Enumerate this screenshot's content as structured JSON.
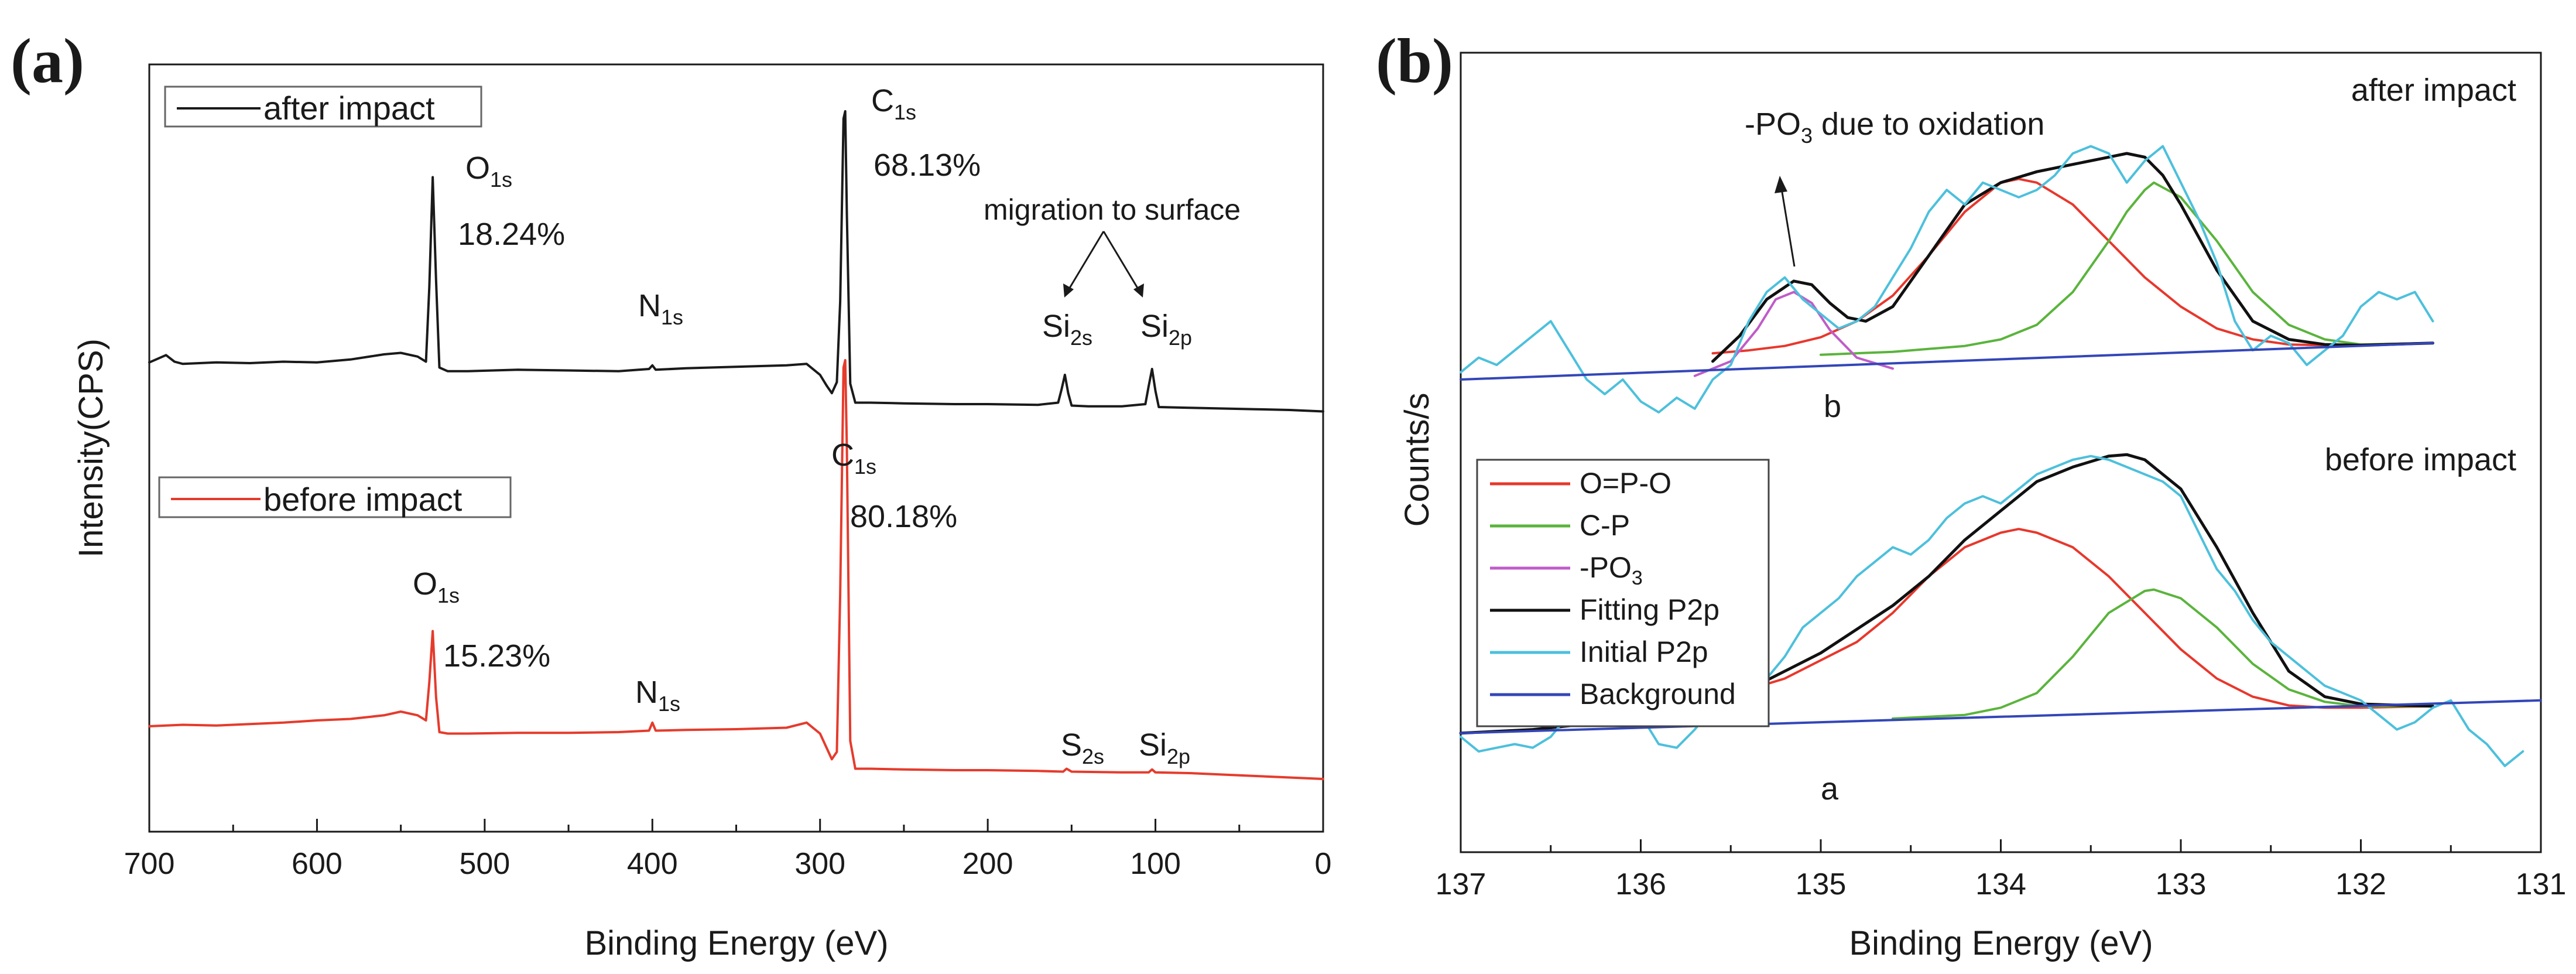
{
  "figure": {
    "panel_a_label": "(a)",
    "panel_b_label": "(b)"
  },
  "chart_data": [
    {
      "type": "line",
      "panel": "(a)",
      "title": "",
      "xlabel": "Binding Energy (eV)",
      "ylabel": "Intensity(CPS)",
      "xlim": [
        700,
        0
      ],
      "x_ticks": [
        700,
        600,
        500,
        400,
        300,
        200,
        100,
        0
      ],
      "ylim": [
        0,
        1
      ],
      "legends": [
        "after impact",
        "before impact"
      ],
      "series": [
        {
          "name": "after impact",
          "color": "#1a1a1a",
          "x": [
            700,
            690,
            685,
            680,
            660,
            640,
            620,
            600,
            580,
            560,
            550,
            540,
            535,
            533,
            531,
            529,
            527,
            522,
            510,
            480,
            450,
            420,
            402,
            400,
            398,
            380,
            350,
            320,
            308,
            300,
            296,
            293,
            290,
            288,
            286,
            285,
            284,
            282,
            279,
            270,
            250,
            220,
            200,
            170,
            158,
            156,
            154,
            152,
            150,
            140,
            120,
            106,
            104,
            102,
            100,
            98,
            80,
            60,
            40,
            20,
            0
          ],
          "y": [
            0.617,
            0.627,
            0.618,
            0.615,
            0.617,
            0.616,
            0.618,
            0.617,
            0.621,
            0.628,
            0.63,
            0.625,
            0.618,
            0.72,
            0.87,
            0.73,
            0.61,
            0.605,
            0.605,
            0.607,
            0.606,
            0.605,
            0.608,
            0.613,
            0.607,
            0.609,
            0.611,
            0.613,
            0.615,
            0.6,
            0.585,
            0.575,
            0.59,
            0.7,
            0.95,
            0.96,
            0.82,
            0.588,
            0.562,
            0.562,
            0.561,
            0.56,
            0.56,
            0.559,
            0.562,
            0.58,
            0.6,
            0.575,
            0.558,
            0.557,
            0.557,
            0.56,
            0.585,
            0.608,
            0.578,
            0.556,
            0.555,
            0.554,
            0.553,
            0.552,
            0.55
          ]
        },
        {
          "name": "before impact",
          "color": "#e53b2c",
          "x": [
            700,
            680,
            660,
            640,
            620,
            600,
            580,
            560,
            550,
            540,
            535,
            533,
            531,
            529,
            527,
            522,
            510,
            480,
            450,
            420,
            402,
            400,
            398,
            380,
            350,
            320,
            308,
            300,
            296,
            293,
            290,
            288,
            286,
            285,
            284,
            282,
            279,
            270,
            250,
            220,
            200,
            170,
            155,
            153,
            150,
            120,
            104,
            102,
            100,
            80,
            60,
            40,
            20,
            0
          ],
          "y": [
            0.12,
            0.122,
            0.121,
            0.123,
            0.125,
            0.128,
            0.13,
            0.135,
            0.14,
            0.135,
            0.128,
            0.18,
            0.25,
            0.16,
            0.112,
            0.11,
            0.11,
            0.111,
            0.111,
            0.112,
            0.114,
            0.125,
            0.114,
            0.115,
            0.116,
            0.118,
            0.125,
            0.11,
            0.09,
            0.075,
            0.085,
            0.3,
            0.61,
            0.62,
            0.5,
            0.1,
            0.062,
            0.062,
            0.061,
            0.06,
            0.06,
            0.059,
            0.058,
            0.062,
            0.058,
            0.057,
            0.057,
            0.061,
            0.057,
            0.056,
            0.054,
            0.052,
            0.05,
            0.048
          ]
        }
      ],
      "annotations": [
        {
          "text": "O",
          "sub": "1s",
          "value": "18.24%"
        },
        {
          "text": "C",
          "sub": "1s",
          "value": "68.13%"
        },
        {
          "text": "N",
          "sub": "1s"
        },
        {
          "text": "migration to surface"
        },
        {
          "text": "Si",
          "sub": "2s"
        },
        {
          "text": "Si",
          "sub": "2p"
        },
        {
          "text": "O",
          "sub": "1s",
          "value": "15.23%"
        },
        {
          "text": "C",
          "sub": "1s",
          "value": "80.18%"
        },
        {
          "text": "N",
          "sub": "1s"
        },
        {
          "text": "S",
          "sub": "2s"
        },
        {
          "text": "Si",
          "sub": "2p"
        }
      ]
    },
    {
      "type": "line",
      "panel": "(b)",
      "title": "",
      "xlabel": "Binding Energy (eV)",
      "ylabel": "Counts/s",
      "xlim": [
        137,
        131
      ],
      "x_ticks": [
        137,
        136,
        135,
        134,
        133,
        132,
        131
      ],
      "ylim": [
        0,
        1
      ],
      "group_labels": [
        "after impact",
        "before impact"
      ],
      "curve_labels": [
        "b",
        "a"
      ],
      "annotation": {
        "text": "-PO",
        "sub": "3",
        "suffix": " due to oxidation"
      },
      "legend": [
        {
          "label": "O=P-O",
          "color": "#e8372c"
        },
        {
          "label": "C-P",
          "color": "#5ab43c"
        },
        {
          "label": "-PO",
          "sub": "3",
          "color": "#c05cc8"
        },
        {
          "label": "Fitting P2p",
          "color": "#111111"
        },
        {
          "label": "Initial P2p",
          "color": "#4cc0dc"
        },
        {
          "label": "Background",
          "color": "#3346b8"
        }
      ],
      "series": [
        {
          "name": "O=P-O (after impact)",
          "color": "#e8372c",
          "x": [
            135.6,
            135.4,
            135.2,
            135.0,
            134.8,
            134.6,
            134.4,
            134.2,
            134.0,
            133.9,
            133.8,
            133.6,
            133.4,
            133.2,
            133.0,
            132.8,
            132.6,
            132.4,
            132.2,
            132.0,
            131.6
          ],
          "y": [
            0.636,
            0.64,
            0.646,
            0.658,
            0.68,
            0.715,
            0.77,
            0.83,
            0.87,
            0.875,
            0.87,
            0.84,
            0.79,
            0.74,
            0.7,
            0.67,
            0.655,
            0.648,
            0.647,
            0.648,
            0.65
          ]
        },
        {
          "name": "C-P (after impact)",
          "color": "#5ab43c",
          "x": [
            135.0,
            134.6,
            134.2,
            134.0,
            133.8,
            133.6,
            133.4,
            133.3,
            133.2,
            133.15,
            133.0,
            132.8,
            132.6,
            132.4,
            132.2,
            132.0,
            131.6
          ],
          "y": [
            0.634,
            0.638,
            0.646,
            0.655,
            0.675,
            0.72,
            0.79,
            0.83,
            0.86,
            0.87,
            0.85,
            0.79,
            0.72,
            0.675,
            0.655,
            0.648,
            0.65
          ]
        },
        {
          "name": "-PO3 (after impact)",
          "color": "#c05cc8",
          "x": [
            135.7,
            135.5,
            135.35,
            135.25,
            135.15,
            135.05,
            134.95,
            134.8,
            134.6
          ],
          "y": [
            0.605,
            0.625,
            0.67,
            0.71,
            0.72,
            0.705,
            0.668,
            0.63,
            0.615
          ]
        },
        {
          "name": "Fitting P2p (after impact)",
          "color": "#111111",
          "x": [
            135.6,
            135.45,
            135.3,
            135.15,
            135.05,
            134.95,
            134.85,
            134.75,
            134.6,
            134.4,
            134.2,
            134.0,
            133.8,
            133.6,
            133.4,
            133.3,
            133.2,
            133.1,
            133.0,
            132.8,
            132.6,
            132.4,
            132.2,
            132.0,
            131.6
          ],
          "y": [
            0.625,
            0.66,
            0.71,
            0.735,
            0.73,
            0.705,
            0.685,
            0.68,
            0.7,
            0.77,
            0.84,
            0.87,
            0.885,
            0.895,
            0.905,
            0.91,
            0.905,
            0.88,
            0.84,
            0.75,
            0.68,
            0.655,
            0.648,
            0.647,
            0.65
          ]
        },
        {
          "name": "Initial P2p (after impact)",
          "color": "#4cc0dc",
          "x": [
            137.0,
            136.9,
            136.8,
            136.7,
            136.6,
            136.5,
            136.4,
            136.3,
            136.2,
            136.1,
            136.0,
            135.9,
            135.8,
            135.7,
            135.6,
            135.5,
            135.4,
            135.3,
            135.2,
            135.1,
            135.0,
            134.9,
            134.8,
            134.7,
            134.6,
            134.5,
            134.4,
            134.3,
            134.2,
            134.1,
            134.0,
            133.9,
            133.8,
            133.7,
            133.6,
            133.5,
            133.4,
            133.3,
            133.2,
            133.1,
            133.0,
            132.9,
            132.8,
            132.7,
            132.6,
            132.5,
            132.4,
            132.3,
            132.2,
            132.1,
            132.0,
            131.9,
            131.8,
            131.7,
            131.6
          ],
          "y": [
            0.61,
            0.63,
            0.62,
            0.64,
            0.66,
            0.68,
            0.64,
            0.6,
            0.58,
            0.6,
            0.57,
            0.555,
            0.575,
            0.56,
            0.6,
            0.62,
            0.68,
            0.72,
            0.74,
            0.71,
            0.69,
            0.67,
            0.68,
            0.7,
            0.74,
            0.78,
            0.83,
            0.86,
            0.84,
            0.87,
            0.86,
            0.85,
            0.86,
            0.88,
            0.91,
            0.92,
            0.91,
            0.87,
            0.9,
            0.92,
            0.87,
            0.82,
            0.76,
            0.68,
            0.64,
            0.66,
            0.65,
            0.62,
            0.64,
            0.66,
            0.7,
            0.72,
            0.71,
            0.72,
            0.68
          ]
        },
        {
          "name": "Background (after impact)",
          "color": "#3346b8",
          "x": [
            137.0,
            131.6
          ],
          "y": [
            0.6,
            0.65
          ]
        },
        {
          "name": "O=P-O (before impact)",
          "color": "#e8372c",
          "x": [
            136.0,
            135.6,
            135.2,
            134.8,
            134.6,
            134.4,
            134.2,
            134.0,
            133.9,
            133.8,
            133.6,
            133.4,
            133.2,
            133.0,
            132.8,
            132.6,
            132.4,
            132.2,
            132.0,
            131.6
          ],
          "y": [
            0.14,
            0.16,
            0.19,
            0.24,
            0.28,
            0.33,
            0.37,
            0.39,
            0.395,
            0.39,
            0.37,
            0.33,
            0.28,
            0.23,
            0.19,
            0.165,
            0.153,
            0.15,
            0.15,
            0.152
          ]
        },
        {
          "name": "C-P (before impact)",
          "color": "#5ab43c",
          "x": [
            134.6,
            134.2,
            134.0,
            133.8,
            133.6,
            133.4,
            133.2,
            133.15,
            133.0,
            132.8,
            132.6,
            132.4,
            132.2,
            132.0,
            131.6
          ],
          "y": [
            0.135,
            0.14,
            0.15,
            0.17,
            0.22,
            0.28,
            0.31,
            0.312,
            0.3,
            0.26,
            0.21,
            0.175,
            0.158,
            0.152,
            0.152
          ]
        },
        {
          "name": "Fitting P2p (before impact)",
          "color": "#111111",
          "x": [
            137.0,
            136.6,
            136.2,
            135.8,
            135.4,
            135.0,
            134.6,
            134.4,
            134.2,
            134.0,
            133.8,
            133.6,
            133.4,
            133.3,
            133.2,
            133.0,
            132.8,
            132.6,
            132.4,
            132.2,
            132.0,
            131.6
          ],
          "y": [
            0.115,
            0.12,
            0.13,
            0.145,
            0.175,
            0.225,
            0.29,
            0.33,
            0.38,
            0.42,
            0.46,
            0.48,
            0.495,
            0.497,
            0.49,
            0.45,
            0.37,
            0.28,
            0.2,
            0.165,
            0.155,
            0.152
          ]
        },
        {
          "name": "Initial P2p (before impact)",
          "color": "#4cc0dc",
          "x": [
            137.0,
            136.9,
            136.8,
            136.7,
            136.6,
            136.5,
            136.4,
            136.3,
            136.2,
            136.1,
            136.0,
            135.9,
            135.8,
            135.7,
            135.6,
            135.5,
            135.4,
            135.3,
            135.2,
            135.1,
            135.0,
            134.9,
            134.8,
            134.7,
            134.6,
            134.5,
            134.4,
            134.3,
            134.2,
            134.1,
            134.0,
            133.9,
            133.8,
            133.7,
            133.6,
            133.5,
            133.4,
            133.3,
            133.2,
            133.1,
            133.0,
            132.9,
            132.8,
            132.7,
            132.6,
            132.5,
            132.4,
            132.3,
            132.2,
            132.1,
            132.0,
            131.9,
            131.8,
            131.7,
            131.6,
            131.5,
            131.4,
            131.3,
            131.2,
            131.1
          ],
          "y": [
            0.11,
            0.09,
            0.095,
            0.1,
            0.095,
            0.11,
            0.14,
            0.13,
            0.135,
            0.15,
            0.14,
            0.1,
            0.095,
            0.12,
            0.15,
            0.18,
            0.2,
            0.19,
            0.22,
            0.26,
            0.28,
            0.3,
            0.33,
            0.35,
            0.37,
            0.36,
            0.38,
            0.41,
            0.43,
            0.44,
            0.43,
            0.45,
            0.47,
            0.48,
            0.49,
            0.495,
            0.49,
            0.48,
            0.47,
            0.46,
            0.44,
            0.39,
            0.34,
            0.31,
            0.27,
            0.24,
            0.22,
            0.2,
            0.18,
            0.17,
            0.16,
            0.14,
            0.12,
            0.13,
            0.15,
            0.16,
            0.12,
            0.1,
            0.07,
            0.09
          ]
        },
        {
          "name": "Background (before impact)",
          "color": "#3346b8",
          "x": [
            137.0,
            131.0
          ],
          "y": [
            0.115,
            0.16
          ]
        }
      ]
    }
  ]
}
